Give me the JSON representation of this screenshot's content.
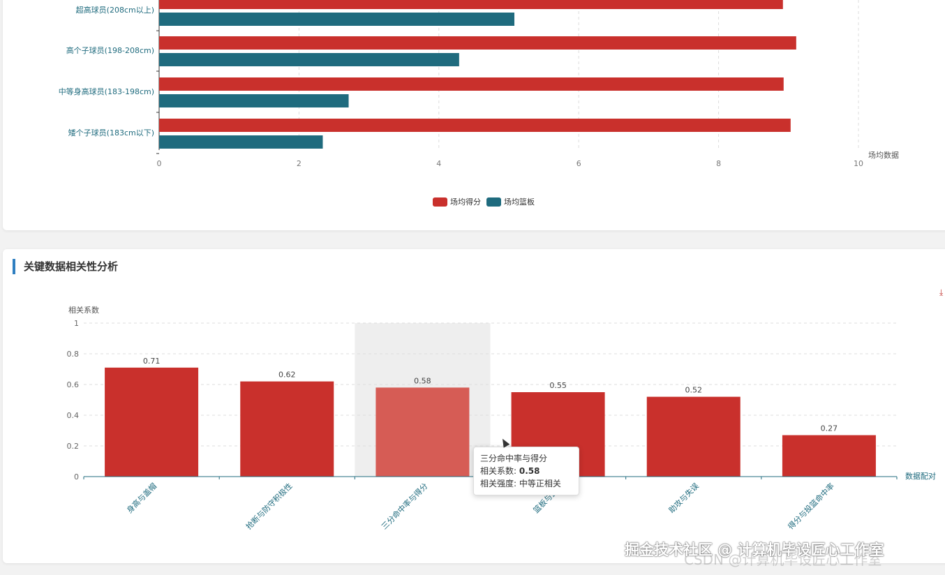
{
  "charts": {
    "height_chart": {
      "type": "bar",
      "orientation": "horizontal",
      "categories": [
        "超高球员(208cm以上)",
        "高个子球员(198-208cm)",
        "中等身高球员(183-198cm)",
        "矮个子球员(183cm以下)"
      ],
      "series": [
        {
          "name": "场均得分",
          "color": "#c9302c",
          "values": [
            8.92,
            9.11,
            8.93,
            9.03
          ]
        },
        {
          "name": "场均篮板",
          "color": "#1f6b7e",
          "values": [
            5.08,
            4.29,
            2.71,
            2.34
          ]
        }
      ],
      "xlabel": "场均数据",
      "xlim": [
        0,
        10
      ],
      "xticks": [
        "0",
        "2",
        "4",
        "6",
        "8",
        "10"
      ],
      "legend_position": "bottom-center"
    },
    "correlation_chart": {
      "title": "关键数据相关性分析",
      "type": "bar",
      "categories": [
        "身高与盖帽",
        "抢断与防守积极性",
        "三分命中率与得分",
        "篮板与盖帽",
        "助攻与失误",
        "得分与投篮命中率"
      ],
      "values": [
        0.71,
        0.62,
        0.58,
        0.55,
        0.52,
        0.27
      ],
      "value_labels": [
        "0.71",
        "0.62",
        "0.58",
        "0.55",
        "0.52",
        "0.27"
      ],
      "color": "#c9302c",
      "highlight_color": "#d65c55",
      "highlight_index": 2,
      "ylabel": "相关系数",
      "xlabel": "数据配对",
      "ylim": [
        0,
        1
      ],
      "yticks": [
        "0",
        "0.2",
        "0.4",
        "0.6",
        "0.8",
        "1"
      ]
    }
  },
  "tooltip": {
    "title": "三分命中率与得分",
    "coef_label": "相关系数: ",
    "coef_value": "0.58",
    "strength_label": "相关强度: ",
    "strength_value": "中等正相关"
  },
  "watermark": {
    "text": "掘金技术社区 @ 计算机毕设匠心工作室",
    "text2": "CSDN @计算机毕设匠心工作室"
  }
}
